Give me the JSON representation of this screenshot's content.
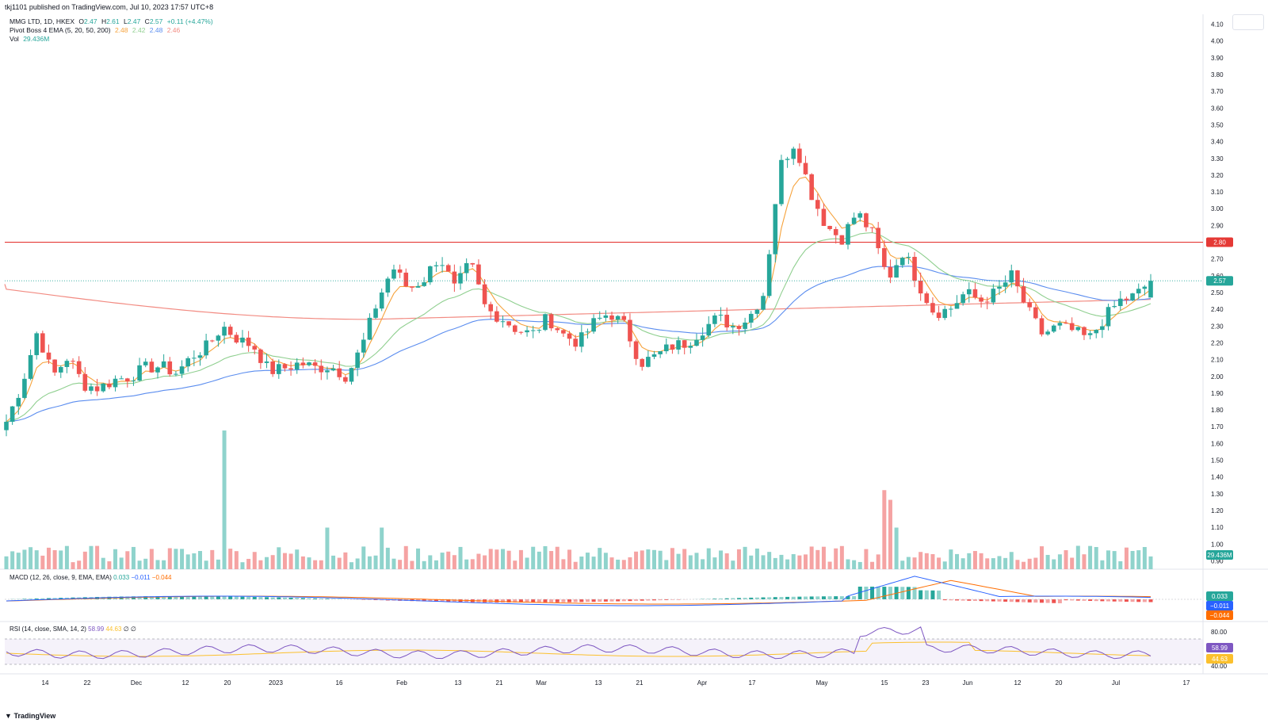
{
  "header": {
    "published": "tkj1101 published on TradingView.com, Jul 10, 2023 17:57 UTC+8",
    "symbol": "MMG LTD, 1D, HKEX",
    "ohlc": {
      "o_label": "O",
      "o": "2.47",
      "h_label": "H",
      "h": "2.61",
      "l_label": "L",
      "l": "2.47",
      "c_label": "C",
      "c": "2.57",
      "chg": "+0.11 (+4.47%)"
    },
    "ema_label": "Pivot Boss 4 EMA (5, 20, 50, 200)",
    "ema_values": [
      "2.48",
      "2.42",
      "2.48",
      "2.46"
    ],
    "vol_label": "Vol",
    "vol_value": "29.436M"
  },
  "colors": {
    "up": "#26a69a",
    "down": "#ef5350",
    "ema5": "#f6a23b",
    "ema20": "#8fcf8f",
    "ema50": "#5b8def",
    "ema200": "#f28b82",
    "hline": "#e53935",
    "macd": "#2962ff",
    "signal": "#ff6d00",
    "rsi": "#7e57c2",
    "rsi_ma": "#fbc02d"
  },
  "price_axis": {
    "ticks": [
      "4.10",
      "4.00",
      "3.90",
      "3.80",
      "3.70",
      "3.60",
      "3.50",
      "3.40",
      "3.30",
      "3.20",
      "3.10",
      "3.00",
      "2.90",
      "2.80",
      "2.70",
      "2.60",
      "2.50",
      "2.40",
      "2.30",
      "2.20",
      "2.10",
      "2.00",
      "1.90",
      "1.80",
      "1.70",
      "1.60",
      "1.50",
      "1.40",
      "1.30",
      "1.20",
      "1.10",
      "1.00",
      "0.90"
    ],
    "hline_label": "2.80",
    "last_price_label": "2.57",
    "volume_label": "29.436M"
  },
  "time_axis": {
    "labels": [
      "14",
      "22",
      "Dec",
      "12",
      "20",
      "2023",
      "16",
      "Feb",
      "13",
      "21",
      "Mar",
      "13",
      "21",
      "Apr",
      "17",
      "May",
      "15",
      "23",
      "Jun",
      "12",
      "20",
      "Jul",
      "17"
    ]
  },
  "macd": {
    "label": "MACD (12, 26, close, 9, EMA, EMA)",
    "values": [
      "0.033",
      "−0.011",
      "−0.044"
    ]
  },
  "rsi": {
    "label": "RSI (14, close, SMA, 14, 2)",
    "values": [
      "58.99",
      "44.63"
    ],
    "extra": "∅ ∅",
    "axis": [
      "80.00",
      "40.00"
    ]
  },
  "footer": {
    "brand": "TradingView"
  },
  "chart_data": {
    "type": "candlestick",
    "title": "MMG LTD, 1D, HKEX",
    "ylim": [
      0.85,
      4.15
    ],
    "horizontal_line": 2.8,
    "x_labels": [
      "14",
      "22",
      "Dec",
      "12",
      "20",
      "2023",
      "16",
      "Feb",
      "13",
      "21",
      "Mar",
      "13",
      "21",
      "Apr",
      "17",
      "May",
      "15",
      "23",
      "Jun",
      "12",
      "20",
      "Jul",
      "17"
    ],
    "close_path": [
      1.73,
      1.95,
      2.27,
      2.0,
      2.12,
      1.95,
      1.93,
      1.98,
      2.0,
      2.05,
      2.06,
      2.02,
      2.12,
      2.18,
      2.3,
      2.22,
      2.18,
      2.03,
      2.05,
      2.08,
      2.05,
      2.06,
      2.0,
      2.18,
      2.45,
      2.65,
      2.52,
      2.58,
      2.72,
      2.52,
      2.68,
      2.4,
      2.35,
      2.28,
      2.25,
      2.35,
      2.25,
      2.2,
      2.32,
      2.38,
      2.3,
      2.08,
      2.12,
      2.18,
      2.2,
      2.28,
      2.35,
      2.3,
      2.35,
      2.5,
      3.25,
      3.4,
      3.1,
      2.9,
      2.82,
      2.98,
      2.85,
      2.58,
      2.75,
      2.55,
      2.38,
      2.4,
      2.5,
      2.45,
      2.5,
      2.6,
      2.4,
      2.25,
      2.3,
      2.27,
      2.22,
      2.35,
      2.45,
      2.48,
      2.57
    ],
    "series": [
      {
        "name": "Vol",
        "last": "29.436M"
      }
    ]
  }
}
